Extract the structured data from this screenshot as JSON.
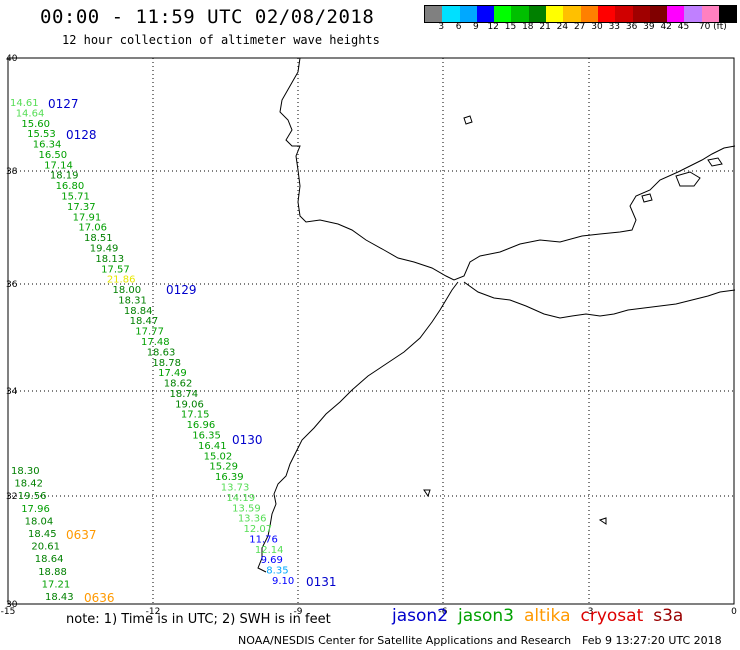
{
  "title": "00:00 - 11:59 UTC 02/08/2018",
  "subtitle": "12 hour collection of altimeter wave heights",
  "colorbar": {
    "colors": [
      "#808080",
      "#00e0ff",
      "#00a8ff",
      "#0000ff",
      "#00ff00",
      "#00c000",
      "#008000",
      "#ffff00",
      "#ffc000",
      "#ff8000",
      "#ff0000",
      "#d00000",
      "#a00000",
      "#800000",
      "#ff00ff",
      "#c080ff",
      "#ff80c0",
      "#000000"
    ],
    "labels": [
      "3",
      "6",
      "9",
      "12",
      "15",
      "18",
      "21",
      "24",
      "27",
      "30",
      "33",
      "36",
      "39",
      "42",
      "45",
      "70 (ft)"
    ]
  },
  "axes": {
    "lon_labels": [
      "-15",
      "-12",
      "-9",
      "-6",
      "-3",
      "0"
    ],
    "lat_labels": [
      "40",
      "38",
      "36",
      "34",
      "32",
      "30"
    ]
  },
  "passes": [
    {
      "label": "0127",
      "color": "#0000cc"
    },
    {
      "label": "0128",
      "color": "#0000cc"
    },
    {
      "label": "0129",
      "color": "#0000cc"
    },
    {
      "label": "0130",
      "color": "#0000cc"
    },
    {
      "label": "0131",
      "color": "#0000cc"
    },
    {
      "label": "0637",
      "color": "#ff9900"
    },
    {
      "label": "0636",
      "color": "#ff9900"
    }
  ],
  "track_main": [
    "14.61",
    "14.64",
    "15.60",
    "15.53",
    "16.34",
    "16.50",
    "17.14",
    "18.19",
    "16.80",
    "15.71",
    "17.37",
    "17.91",
    "17.06",
    "18.51",
    "19.49",
    "18.13",
    "17.57",
    "21.86",
    "18.00",
    "18.31",
    "18.84",
    "18.47",
    "17.77",
    "17.48",
    "18.63",
    "18.78",
    "17.49",
    "18.62",
    "18.74",
    "19.06",
    "17.15",
    "16.96",
    "16.35",
    "16.41",
    "15.02",
    "15.29",
    "16.39",
    "13.73",
    "14.19",
    "13.59",
    "13.36",
    "12.07",
    "11.76",
    "12.14",
    "9.69",
    "8.35",
    "9.10"
  ],
  "track_west": [
    "18.30",
    "18.42",
    "19.56",
    "17.96",
    "18.04",
    "18.45",
    "20.61",
    "18.64",
    "18.88",
    "17.21",
    "18.43"
  ],
  "note": "note:  1) Time is in UTC;  2) SWH is in feet",
  "legend": [
    {
      "name": "jason2",
      "color": "#0000cc"
    },
    {
      "name": "jason3",
      "color": "#00a000"
    },
    {
      "name": "altika",
      "color": "#ff9900"
    },
    {
      "name": "cryosat",
      "color": "#dd0000"
    },
    {
      "name": "s3a",
      "color": "#990000"
    }
  ],
  "credit": "NOAA/NESDIS Center for Satellite Applications and Research",
  "credit_time": "Feb  9 13:27:20 UTC 2018"
}
